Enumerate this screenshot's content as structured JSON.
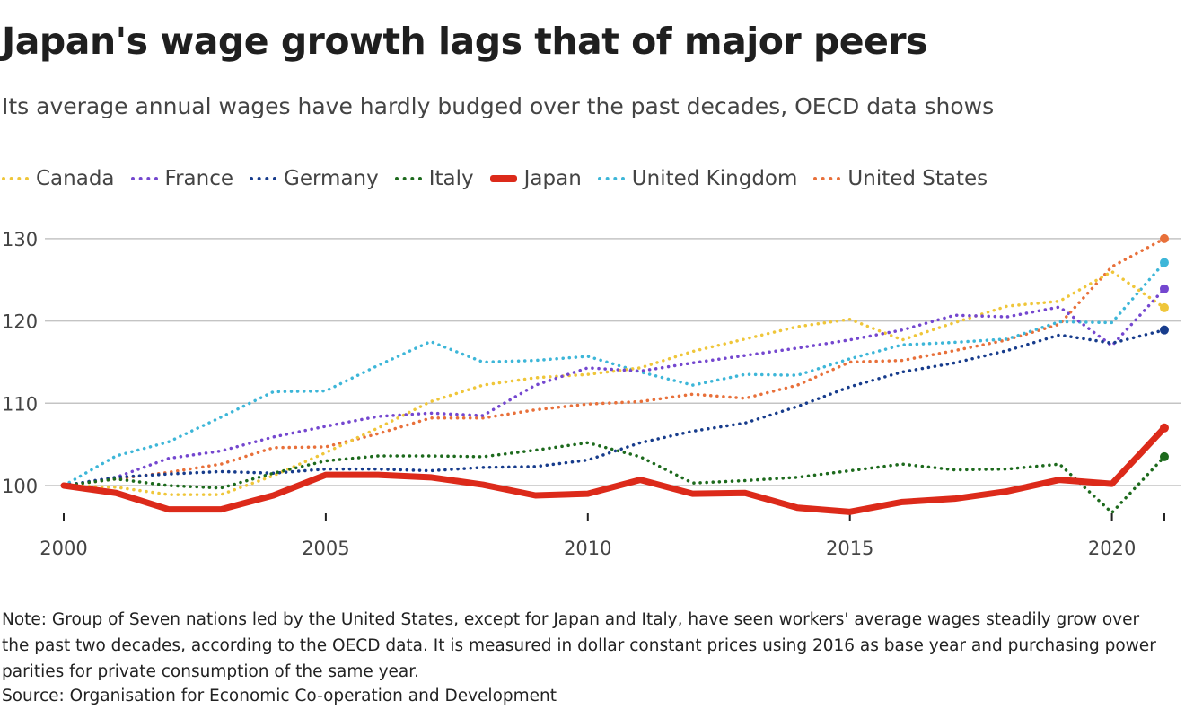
{
  "chart_data": {
    "type": "line",
    "title": "Japan's wage growth lags that of major peers",
    "subtitle": "Its average annual wages have hardly budged over the past decades, OECD data shows",
    "x": [
      2000,
      2001,
      2002,
      2003,
      2004,
      2005,
      2006,
      2007,
      2008,
      2009,
      2010,
      2011,
      2012,
      2013,
      2014,
      2015,
      2016,
      2017,
      2018,
      2019,
      2020,
      2021
    ],
    "xticks": [
      "2000",
      "2005",
      "2010",
      "2015",
      "2020"
    ],
    "yticks": [
      "100",
      "110",
      "120",
      "130"
    ],
    "ylim": [
      96,
      130
    ],
    "grid": true,
    "legend_placement": "top",
    "series": [
      {
        "name": "Canada",
        "color": "#efc63a",
        "style": "dotted",
        "values": [
          100,
          99.8,
          98.9,
          98.9,
          101.2,
          104,
          107,
          110.2,
          112.2,
          113.1,
          113.5,
          114.3,
          116.3,
          117.8,
          119.3,
          120.2,
          117.7,
          119.8,
          121.8,
          122.4,
          126,
          121.6
        ]
      },
      {
        "name": "France",
        "color": "#7447cf",
        "style": "dotted",
        "values": [
          100,
          101,
          103.3,
          104.2,
          105.9,
          107.2,
          108.4,
          108.8,
          108.5,
          112.2,
          114.3,
          113.9,
          114.9,
          115.8,
          116.7,
          117.7,
          118.9,
          120.7,
          120.5,
          121.7,
          117,
          123.9
        ]
      },
      {
        "name": "Germany",
        "color": "#173c8c",
        "style": "dotted",
        "values": [
          100,
          101,
          101.4,
          101.7,
          101.5,
          102,
          102,
          101.8,
          102.2,
          102.3,
          103.1,
          105.2,
          106.6,
          107.6,
          109.6,
          112,
          113.8,
          114.9,
          116.4,
          118.3,
          117.3,
          118.9
        ]
      },
      {
        "name": "Italy",
        "color": "#1d6a1d",
        "style": "dotted",
        "values": [
          100,
          100.8,
          100,
          99.7,
          101.5,
          103,
          103.6,
          103.6,
          103.5,
          104.3,
          105.2,
          103.5,
          100.3,
          100.6,
          101,
          101.8,
          102.6,
          101.9,
          102,
          102.6,
          96.7,
          103.5
        ]
      },
      {
        "name": "Japan",
        "color": "#dc2a1a",
        "style": "solid",
        "values": [
          100,
          99.1,
          97.1,
          97.1,
          98.8,
          101.3,
          101.3,
          101,
          100.1,
          98.8,
          99,
          100.7,
          99,
          99.1,
          97.3,
          96.8,
          98,
          98.4,
          99.3,
          100.7,
          100.2,
          107
        ]
      },
      {
        "name": "United Kingdom",
        "color": "#3db6d8",
        "style": "dotted",
        "values": [
          100,
          103.6,
          105.3,
          108.3,
          111.4,
          111.5,
          114.6,
          117.5,
          115,
          115.2,
          115.7,
          113.8,
          112.2,
          113.5,
          113.4,
          115.4,
          117.1,
          117.4,
          117.8,
          119.9,
          119.8,
          127.1
        ]
      },
      {
        "name": "United States",
        "color": "#e8703a",
        "style": "dotted",
        "values": [
          100,
          100.8,
          101.6,
          102.6,
          104.6,
          104.7,
          106.3,
          108.2,
          108.2,
          109.2,
          109.9,
          110.2,
          111.1,
          110.6,
          112.2,
          115,
          115.2,
          116.4,
          117.7,
          119.6,
          126.6,
          130
        ]
      }
    ]
  },
  "note": "Note: Group of Seven nations led by the United States, except for Japan and Italy, have seen workers' average wages steadily grow over the past two decades, according to the OECD data. It is measured in dollar constant prices using 2016 as base year and purchasing power parities for private consumption of the same year.",
  "source": "Source: Organisation for Economic Co-operation and Development"
}
